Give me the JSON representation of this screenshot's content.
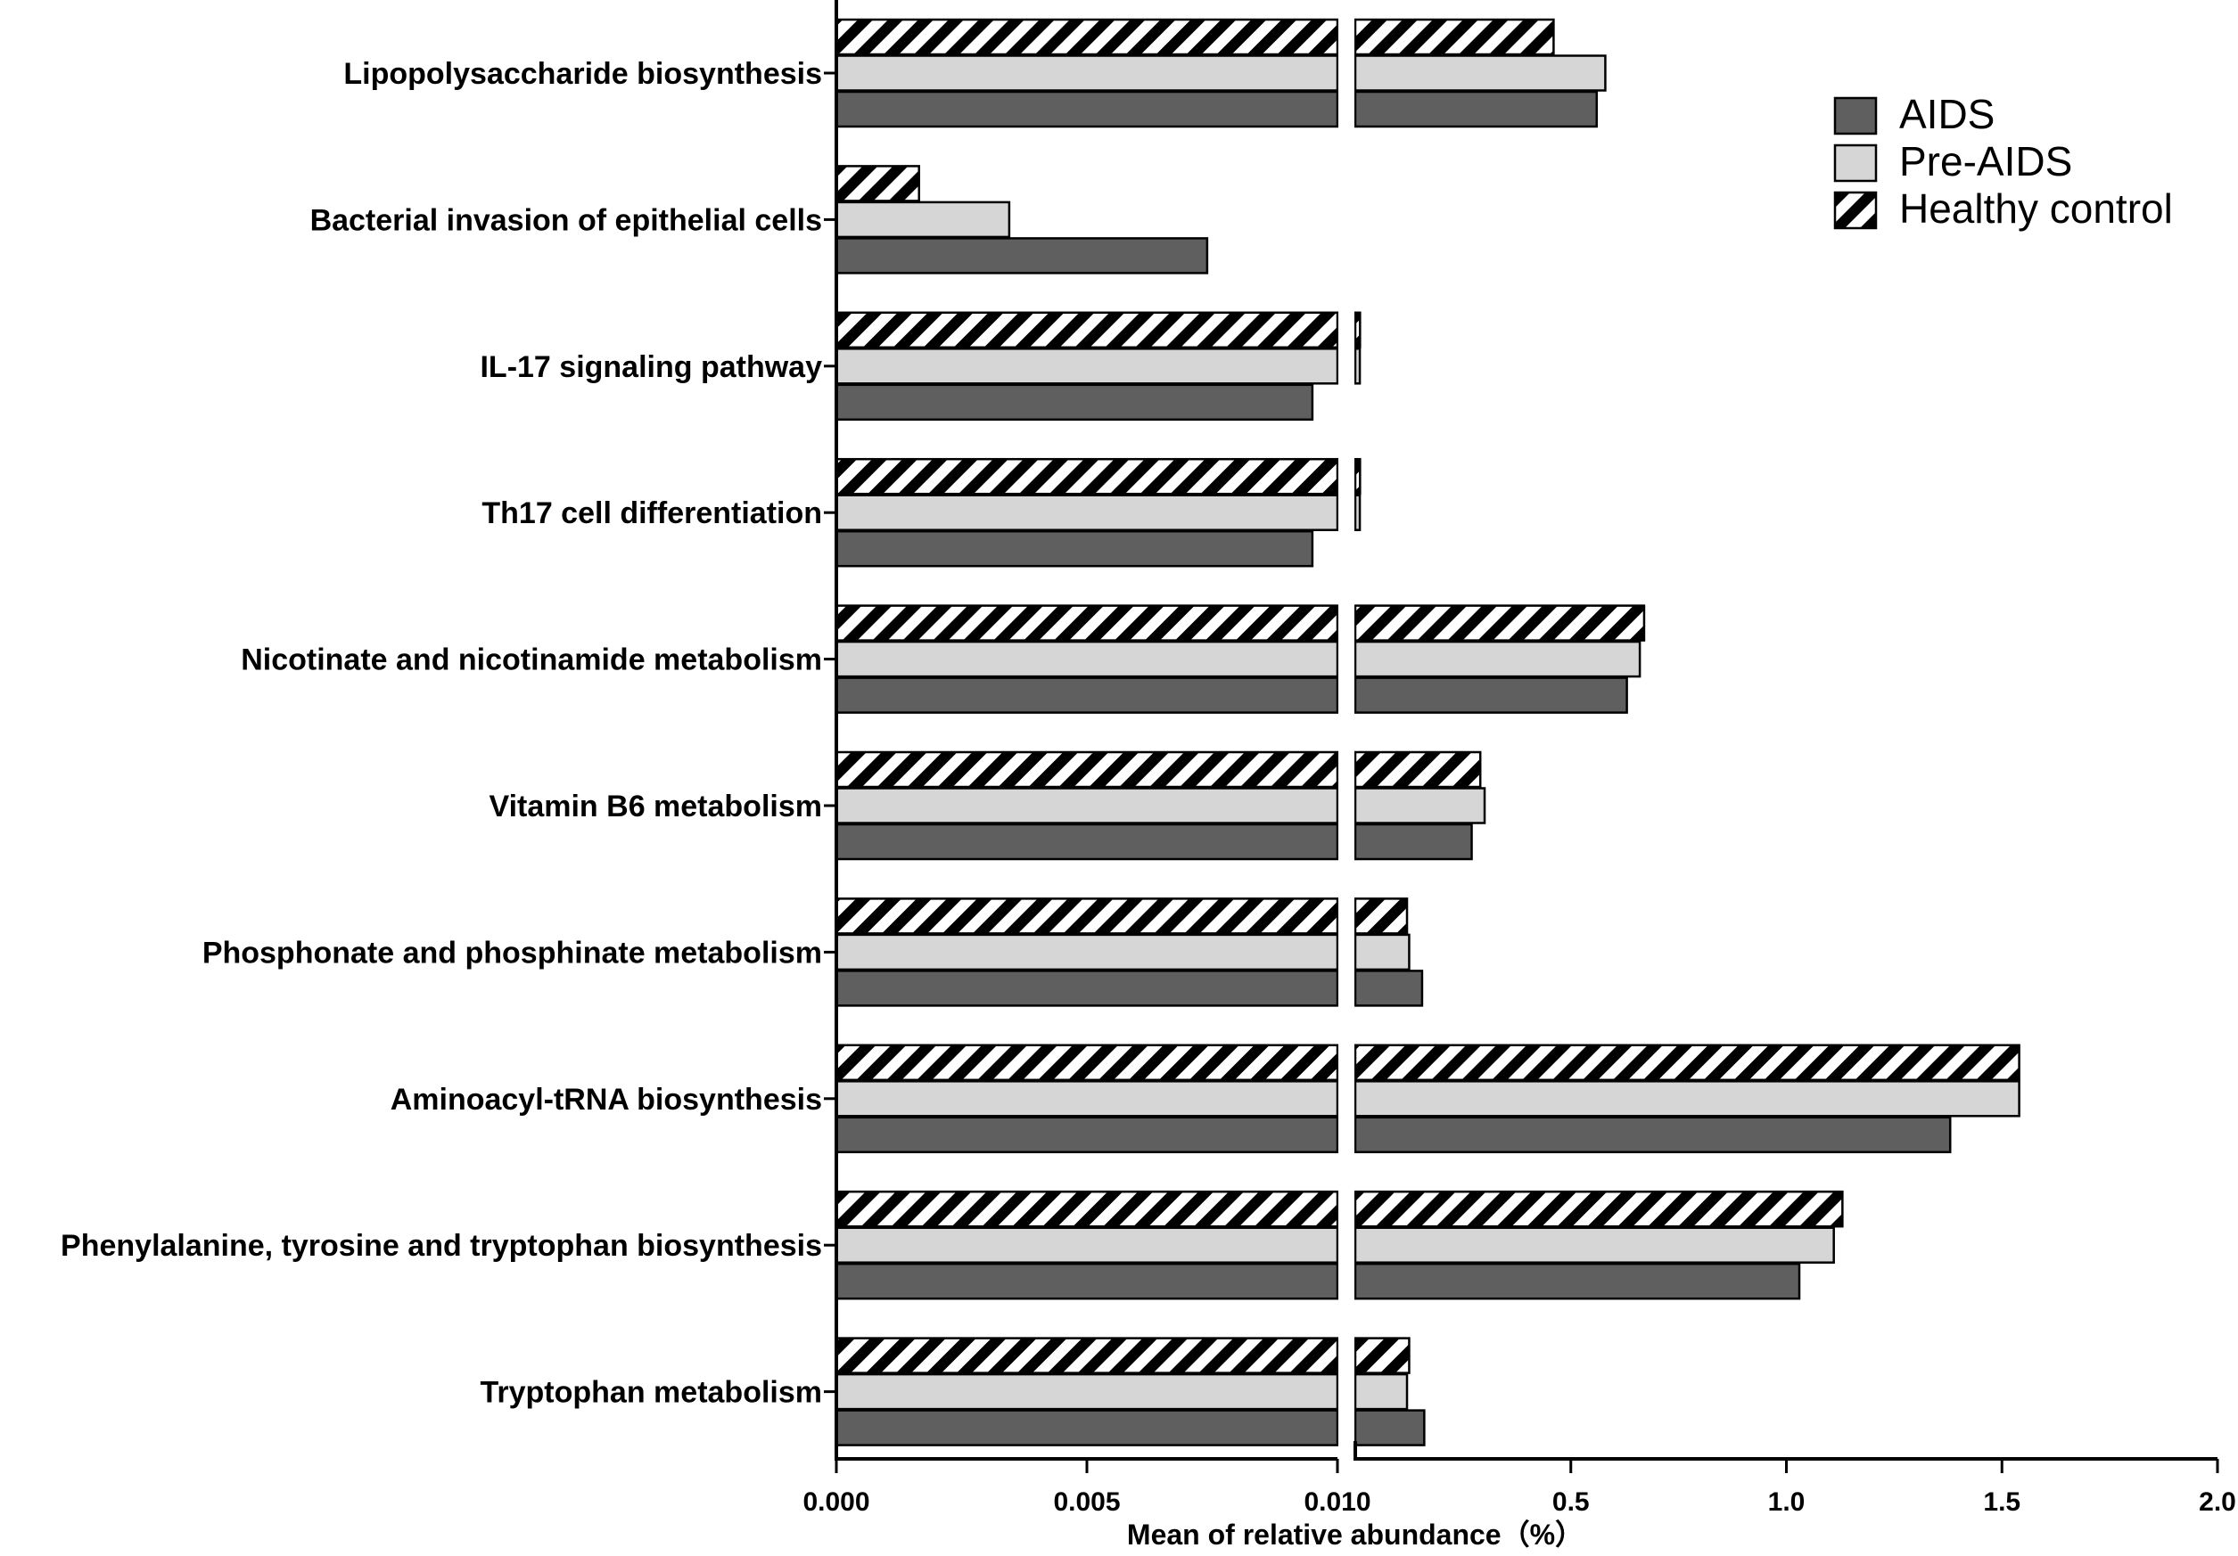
{
  "chart_data": {
    "type": "bar",
    "orientation": "horizontal",
    "axis_break": true,
    "categories": [
      "Lipopolysaccharide biosynthesis",
      "Bacterial invasion of epithelial cells",
      "IL-17 signaling pathway",
      "Th17 cell differentiation",
      "Nicotinate and nicotinamide metabolism",
      "Vitamin B6 metabolism",
      "Phosphonate and phosphinate metabolism",
      "Aminoacyl-tRNA biosynthesis",
      "Phenylalanine, tyrosine and tryptophan biosynthesis",
      "Tryptophan metabolism"
    ],
    "series": [
      {
        "name": "Healthy control",
        "pattern": "hatch",
        "color": "#ffffff",
        "values": [
          0.46,
          0.00165,
          0.011,
          0.011,
          0.67,
          0.29,
          0.12,
          1.54,
          1.13,
          0.125
        ]
      },
      {
        "name": "Pre-AIDS",
        "pattern": "solid",
        "color": "#d6d6d6",
        "values": [
          0.58,
          0.00345,
          0.0105,
          0.0105,
          0.66,
          0.3,
          0.125,
          1.54,
          1.11,
          0.12
        ]
      },
      {
        "name": "AIDS",
        "pattern": "solid",
        "color": "#5f5f5f",
        "values": [
          0.56,
          0.0074,
          0.0095,
          0.0095,
          0.63,
          0.27,
          0.155,
          1.38,
          1.03,
          0.16
        ]
      }
    ],
    "legend_order": [
      "AIDS",
      "Pre-AIDS",
      "Healthy control"
    ],
    "legend_position": "top-right",
    "xlabel": "Mean of relative abundance（%）",
    "ylabel": "",
    "x_segment1": {
      "range": [
        0.0,
        0.01
      ],
      "ticks": [
        "0.000",
        "0.005",
        "0.010"
      ],
      "tick_values": [
        0.0,
        0.005,
        0.01
      ]
    },
    "x_segment2": {
      "range": [
        0.0,
        2.0
      ],
      "ticks": [
        "0.5",
        "1.0",
        "1.5",
        "2.0"
      ],
      "tick_values": [
        0.5,
        1.0,
        1.5,
        2.0
      ]
    }
  }
}
